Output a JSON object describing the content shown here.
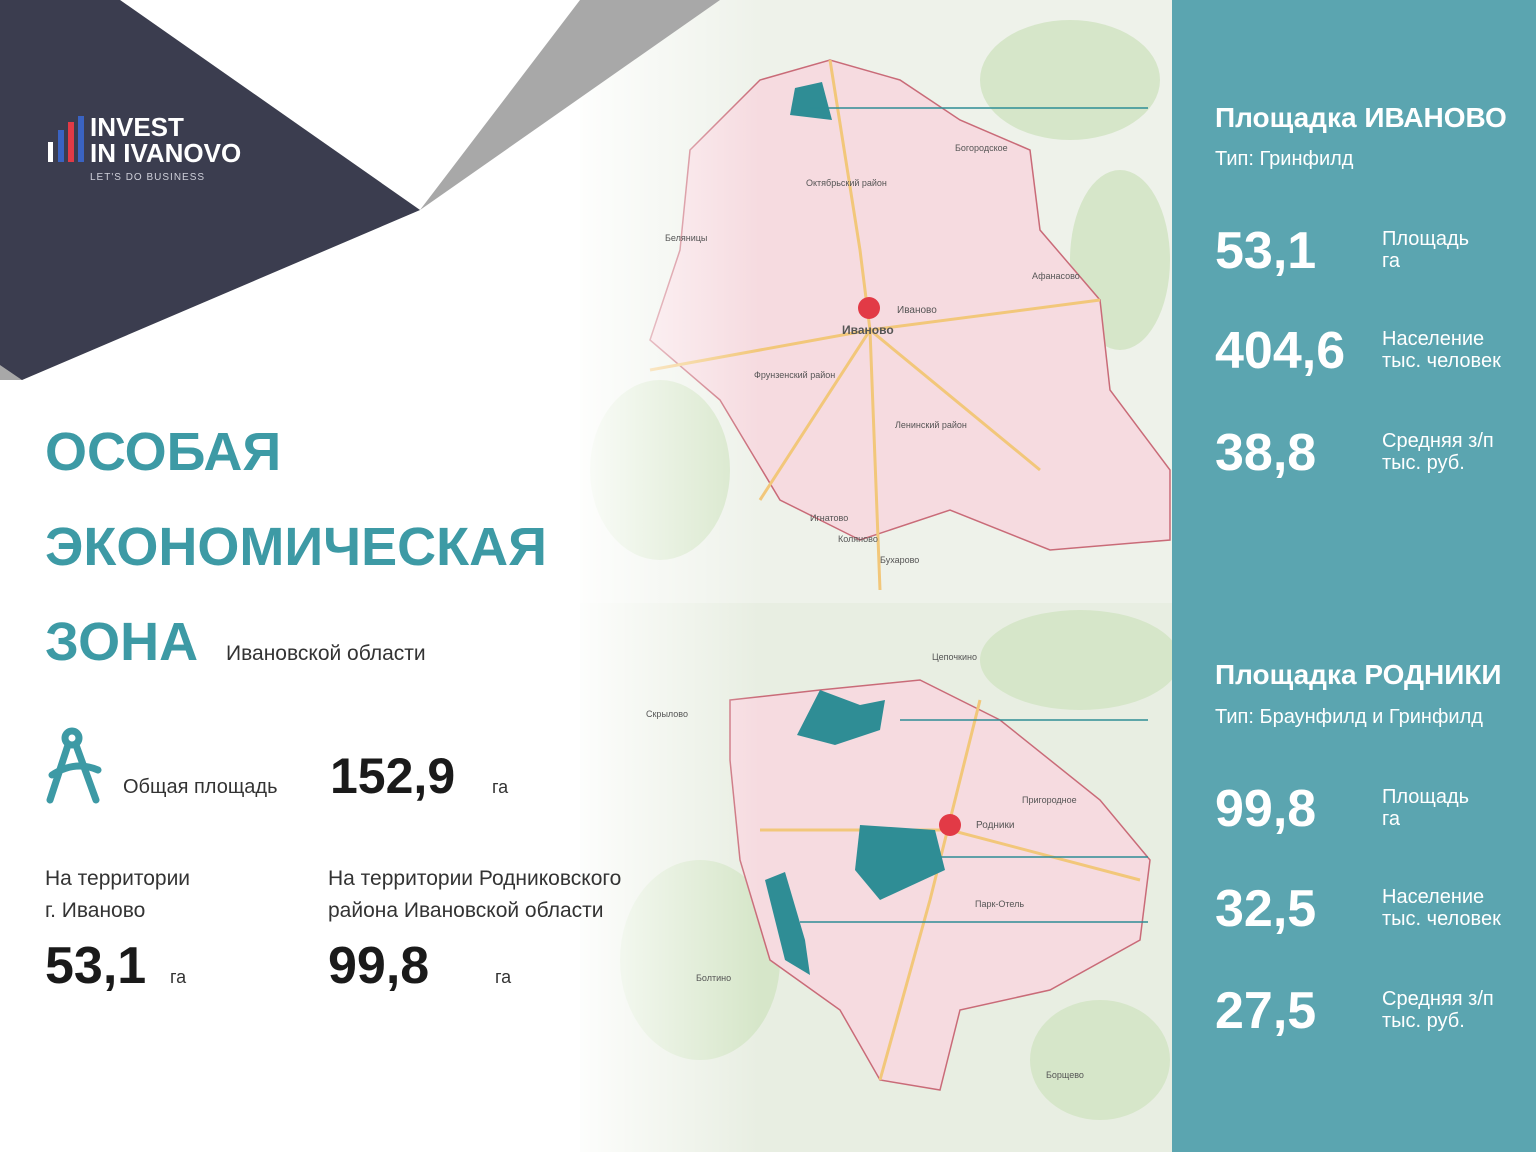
{
  "logo": {
    "line1": "INVEST",
    "line2": "IN IVANOVO",
    "tagline": "LET'S DO BUSINESS"
  },
  "title": {
    "lines": [
      "ОСОБАЯ",
      "ЭКОНОМИЧЕСКАЯ",
      "ЗОНА"
    ],
    "subtitle": "Ивановской области"
  },
  "total": {
    "label": "Общая площадь",
    "value": "152,9",
    "unit": "га"
  },
  "territories": [
    {
      "label_lines": [
        "На территории",
        "г. Иваново"
      ],
      "value": "53,1",
      "unit": "га"
    },
    {
      "label_lines": [
        "На территории Родниковского",
        "района Ивановской области"
      ],
      "value": "99,8",
      "unit": "га"
    }
  ],
  "sites": [
    {
      "title": "Площадка ИВАНОВО",
      "type": "Тип: Гринфилд",
      "stats": [
        {
          "value": "53,1",
          "label": "Площадь",
          "unit": "га"
        },
        {
          "value": "404,6",
          "label": "Население",
          "unit": "тыс. человек"
        },
        {
          "value": "38,8",
          "label": "Средняя з/п",
          "unit": "тыс. руб."
        }
      ]
    },
    {
      "title": "Площадка РОДНИКИ",
      "type": "Тип: Браунфилд и Гринфилд",
      "stats": [
        {
          "value": "99,8",
          "label": "Площадь",
          "unit": "га"
        },
        {
          "value": "32,5",
          "label": "Население",
          "unit": "тыс. человек"
        },
        {
          "value": "27,5",
          "label": "Средняя з/п",
          "unit": "тыс. руб."
        }
      ]
    }
  ],
  "map_labels": [
    "Иваново",
    "Иваново",
    "Богородское",
    "Афанасово",
    "Беляницы",
    "Игнатово",
    "Коляново",
    "Бухарово",
    "Октябрьский район",
    "Фрунзенский район",
    "Ленинский район",
    "Родники",
    "Пригородное",
    "Цепочкино",
    "Скрылово",
    "Болтино",
    "Парк-Отель",
    "Борщево"
  ]
}
